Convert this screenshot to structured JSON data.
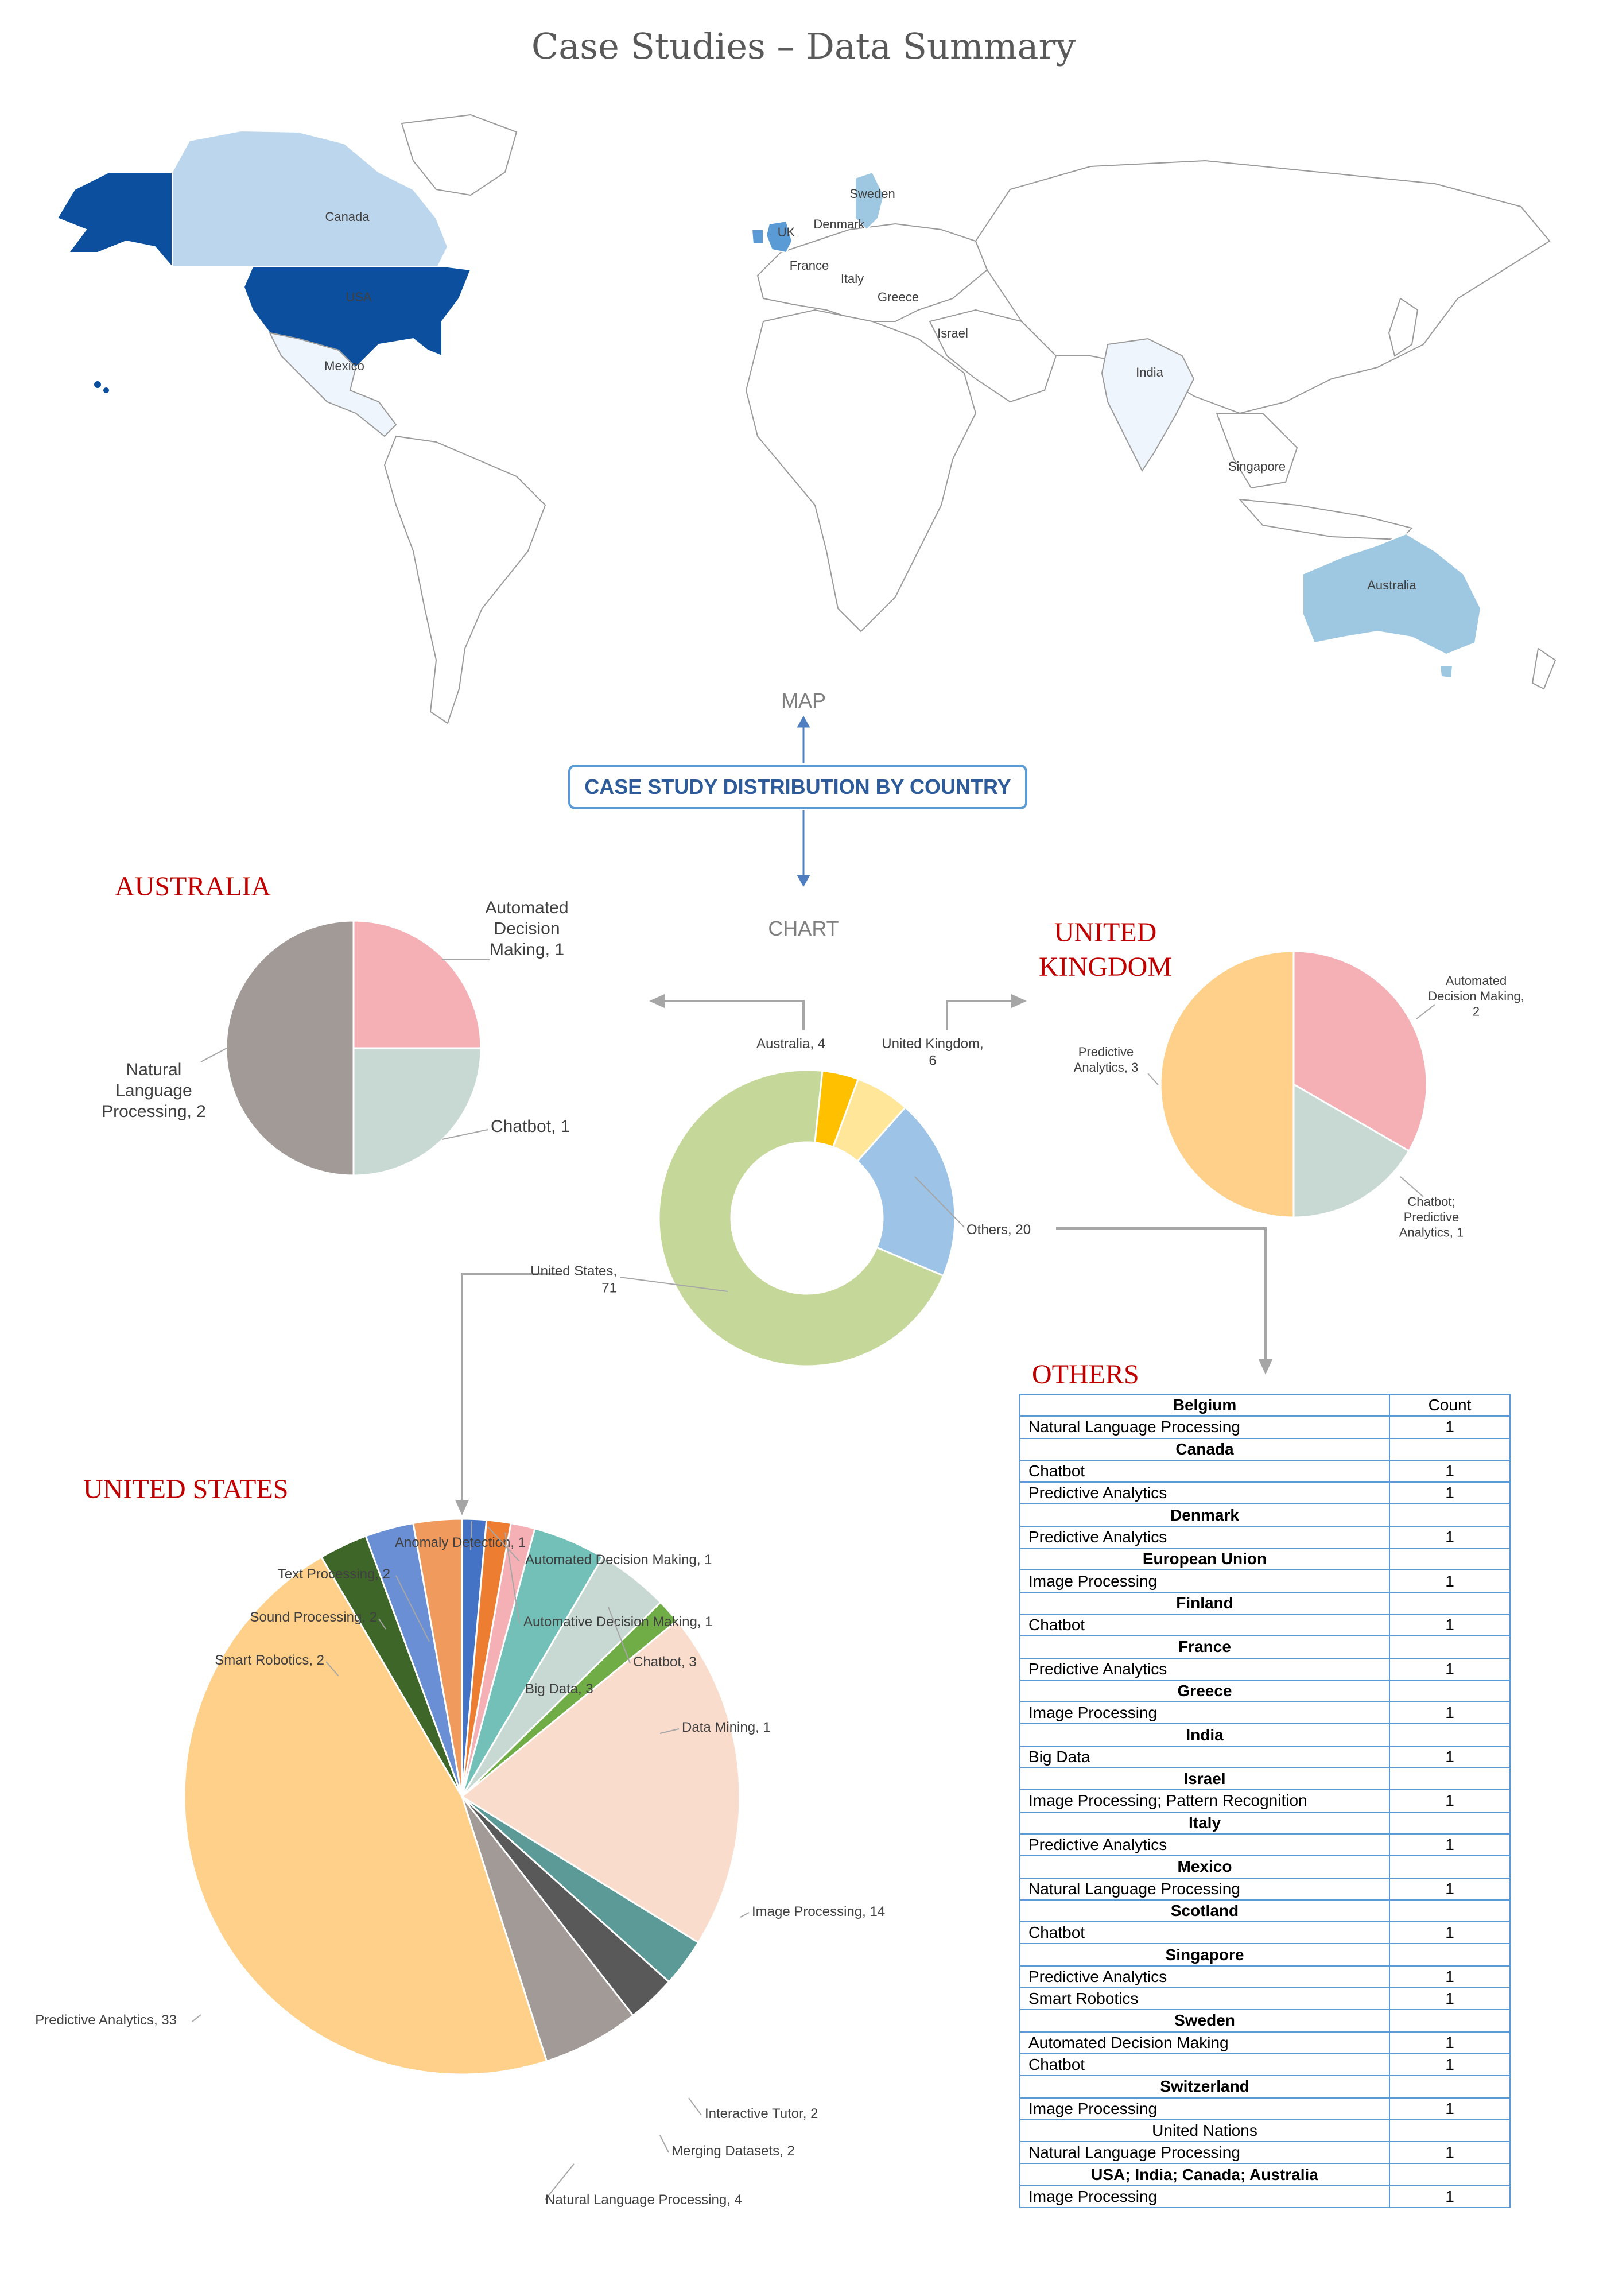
{
  "title": "Case Studies – Data Summary",
  "map": {
    "caption": "MAP",
    "labels": [
      "Canada",
      "USA",
      "Mexico",
      "UK",
      "Sweden",
      "Denmark",
      "France",
      "Italy",
      "Greece",
      "Israel",
      "India",
      "Singapore",
      "Australia"
    ]
  },
  "center_box": "CASE STUDY DISTRIBUTION BY COUNTRY",
  "chart_caption": "CHART",
  "colors": {
    "accent_red": "#c00000",
    "box_blue": "#5b9bd5",
    "map_dark": "#0b4f9e",
    "map_light": "#bcd6ee",
    "map_mid": "#9ec8e2"
  },
  "chart_data": [
    {
      "type": "pie",
      "title": "",
      "variant": "donut",
      "slices": [
        {
          "label": "Australia",
          "value": 4,
          "color": "#ffc000",
          "text": "Australia, 4"
        },
        {
          "label": "United Kingdom",
          "value": 6,
          "color": "#ffe699",
          "text": "United Kingdom, 6"
        },
        {
          "label": "Others",
          "value": 20,
          "color": "#9dc3e6",
          "text": "Others, 20"
        },
        {
          "label": "United States",
          "value": 71,
          "color": "#c5d89a",
          "text": "United States, 71"
        }
      ]
    },
    {
      "type": "pie",
      "title": "AUSTRALIA",
      "slices": [
        {
          "label": "Automated Decision Making",
          "value": 1,
          "color": "#f4b0b5",
          "text": "Automated Decision Making, 1"
        },
        {
          "label": "Chatbot",
          "value": 1,
          "color": "#c8d9d3",
          "text": "Chatbot, 1"
        },
        {
          "label": "Natural Language Processing",
          "value": 2,
          "color": "#a19a97",
          "text": "Natural Language Processing, 2"
        }
      ]
    },
    {
      "type": "pie",
      "title": "UNITED KINGDOM",
      "slices": [
        {
          "label": "Automated Decision Making",
          "value": 2,
          "color": "#f4b0b5",
          "text": "Automated Decision Making, 2"
        },
        {
          "label": "Chatbot; Predictive Analytics",
          "value": 1,
          "color": "#c8d9d3",
          "text": "Chatbot; Predictive Analytics, 1"
        },
        {
          "label": "Predictive Analytics",
          "value": 3,
          "color": "#ffd08a",
          "text": "Predictive Analytics, 3"
        }
      ]
    },
    {
      "type": "pie",
      "title": "UNITED STATES",
      "slices": [
        {
          "label": "Anomaly Detection",
          "value": 1,
          "color": "#4472c4",
          "text": "Anomaly Detection, 1"
        },
        {
          "label": "Automated Decision Making",
          "value": 1,
          "color": "#ed7d31",
          "text": "Automated Decision Making, 1"
        },
        {
          "label": "Automative Decision Making",
          "value": 1,
          "color": "#f4b0b5",
          "text": "Automative Decision Making, 1"
        },
        {
          "label": "Big Data",
          "value": 3,
          "color": "#72c0b8",
          "text": "Big Data, 3"
        },
        {
          "label": "Chatbot",
          "value": 3,
          "color": "#c8d9d3",
          "text": "Chatbot, 3"
        },
        {
          "label": "Data Mining",
          "value": 1,
          "color": "#70ad47",
          "text": "Data Mining, 1"
        },
        {
          "label": "Image Processing",
          "value": 14,
          "color": "#fadccc",
          "text": "Image Processing, 14"
        },
        {
          "label": "Interactive Tutor",
          "value": 2,
          "color": "#5b9a96",
          "text": "Interactive Tutor, 2"
        },
        {
          "label": "Merging Datasets",
          "value": 2,
          "color": "#595959",
          "text": "Merging Datasets, 2"
        },
        {
          "label": "Natural Language Processing",
          "value": 4,
          "color": "#a19a97",
          "text": "Natural Language Processing, 4"
        },
        {
          "label": "Predictive Analytics",
          "value": 33,
          "color": "#ffd08a",
          "text": "Predictive Analytics, 33"
        },
        {
          "label": "Smart Robotics",
          "value": 2,
          "color": "#3e6629",
          "text": "Smart Robotics, 2"
        },
        {
          "label": "Sound Processing",
          "value": 2,
          "color": "#6a8fd4",
          "text": "Sound Processing, 2"
        },
        {
          "label": "Text Processing",
          "value": 2,
          "color": "#f09a5e",
          "text": "Text Processing, 2"
        }
      ]
    },
    {
      "type": "table",
      "title": "OTHERS",
      "columns": [
        "Belgium",
        "Count"
      ],
      "rows": [
        {
          "kind": "item",
          "name": "Natural Language Processing",
          "count": "1"
        },
        {
          "kind": "group",
          "name": "Canada",
          "count": ""
        },
        {
          "kind": "item",
          "name": "Chatbot",
          "count": "1"
        },
        {
          "kind": "item",
          "name": "Predictive Analytics",
          "count": "1"
        },
        {
          "kind": "group",
          "name": "Denmark",
          "count": ""
        },
        {
          "kind": "item",
          "name": "Predictive Analytics",
          "count": "1"
        },
        {
          "kind": "group",
          "name": "European Union",
          "count": ""
        },
        {
          "kind": "item",
          "name": "Image Processing",
          "count": "1"
        },
        {
          "kind": "group",
          "name": "Finland",
          "count": ""
        },
        {
          "kind": "item",
          "name": "Chatbot",
          "count": "1"
        },
        {
          "kind": "group",
          "name": "France",
          "count": ""
        },
        {
          "kind": "item",
          "name": "Predictive Analytics",
          "count": "1"
        },
        {
          "kind": "group",
          "name": "Greece",
          "count": ""
        },
        {
          "kind": "item",
          "name": "Image Processing",
          "count": "1"
        },
        {
          "kind": "group",
          "name": "India",
          "count": ""
        },
        {
          "kind": "item",
          "name": "Big Data",
          "count": "1"
        },
        {
          "kind": "group",
          "name": "Israel",
          "count": ""
        },
        {
          "kind": "item",
          "name": "Image Processing; Pattern Recognition",
          "count": "1"
        },
        {
          "kind": "group",
          "name": "Italy",
          "count": ""
        },
        {
          "kind": "item",
          "name": "Predictive Analytics",
          "count": "1"
        },
        {
          "kind": "group",
          "name": "Mexico",
          "count": ""
        },
        {
          "kind": "item",
          "name": "Natural Language Processing",
          "count": "1"
        },
        {
          "kind": "group",
          "name": "Scotland",
          "count": ""
        },
        {
          "kind": "item",
          "name": "Chatbot",
          "count": "1"
        },
        {
          "kind": "group",
          "name": "Singapore",
          "count": ""
        },
        {
          "kind": "item",
          "name": "Predictive Analytics",
          "count": "1"
        },
        {
          "kind": "item",
          "name": "Smart Robotics",
          "count": "1"
        },
        {
          "kind": "group",
          "name": "Sweden",
          "count": ""
        },
        {
          "kind": "item",
          "name": "Automated Decision Making",
          "count": "1"
        },
        {
          "kind": "item",
          "name": "Chatbot",
          "count": "1"
        },
        {
          "kind": "group",
          "name": "Switzerland",
          "count": ""
        },
        {
          "kind": "item",
          "name": "Image Processing",
          "count": "1"
        },
        {
          "kind": "group-plain",
          "name": "United Nations",
          "count": ""
        },
        {
          "kind": "item",
          "name": "Natural Language Processing",
          "count": "1"
        },
        {
          "kind": "group",
          "name": "USA; India; Canada; Australia",
          "count": ""
        },
        {
          "kind": "item",
          "name": "Image Processing",
          "count": "1"
        }
      ]
    }
  ]
}
